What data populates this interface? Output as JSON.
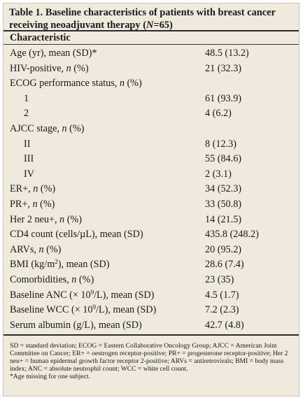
{
  "table": {
    "title_a": "Table 1. Baseline characteristics of patients with breast cancer receiving neoadjuvant therapy (",
    "title_n": "N",
    "title_b": "=65)",
    "header": "Characteristic",
    "rows": [
      {
        "label": "Age (yr), mean (SD)*",
        "value": "48.5 (13.2)"
      },
      {
        "label": "HIV-positive, ",
        "label_em": "n",
        "label_tail": " (%)",
        "value": "21 (32.3)"
      },
      {
        "label": "ECOG performance status, ",
        "label_em": "n",
        "label_tail": " (%)",
        "value": ""
      },
      {
        "label": "1",
        "value": "61 (93.9)"
      },
      {
        "label": "2",
        "value": "4 (6.2)"
      },
      {
        "label": "AJCC stage, ",
        "label_em": "n",
        "label_tail": " (%)",
        "value": ""
      },
      {
        "label": "II",
        "value": "8 (12.3)"
      },
      {
        "label": "III",
        "value": "55 (84.6)"
      },
      {
        "label": "IV",
        "value": "2 (3.1)"
      },
      {
        "label": "ER+, ",
        "label_em": "n",
        "label_tail": " (%)",
        "value": "34 (52.3)"
      },
      {
        "label": "PR+, ",
        "label_em": "n",
        "label_tail": " (%)",
        "value": "33 (50.8)"
      },
      {
        "label": "Her 2 neu+, ",
        "label_em": "n",
        "label_tail": " (%)",
        "value": "14 (21.5)"
      },
      {
        "label": "CD4 count (cells/µL), mean (SD)",
        "value": "435.8 (248.2)"
      },
      {
        "label": "ARVs, ",
        "label_em": "n",
        "label_tail": " (%)",
        "value": "20 (95.2)"
      },
      {
        "label": "BMI (kg/m",
        "label_sup": "2",
        "label_tail": "), mean (SD)",
        "value": "28.6 (7.4)"
      },
      {
        "label": "Comorbidities, ",
        "label_em": "n",
        "label_tail": " (%)",
        "value": "23 (35)"
      },
      {
        "label": "Baseline ANC (× 10",
        "label_sup": "9",
        "label_tail": "/L), mean (SD)",
        "value": "4.5 (1.7)"
      },
      {
        "label": "Baseline WCC (× 10",
        "label_sup": "9",
        "label_tail": "/L), mean (SD)",
        "value": "7.2 (2.3)"
      },
      {
        "label": "Serum albumin (g/L), mean (SD)",
        "value": "42.7 (4.8)"
      }
    ],
    "footnote_1": "SD = standard deviation; ECOG = Eastern Collaborative Oncology Group; AJCC = American Joint Committee on Cancer; ER+ = oestrogen receptor-positive; PR+ = progesterone receptor-positive; Her 2 neu+ = human epidermal growth factor receptor 2-positive; ARVs = antiretrovirals; BMI = body mass index; ANC = absolute neutrophil count; WCC = white cell count.",
    "footnote_2": "*Age missing for one subject."
  },
  "colors": {
    "background": "#efe9de",
    "rule": "#2b2b2b"
  }
}
